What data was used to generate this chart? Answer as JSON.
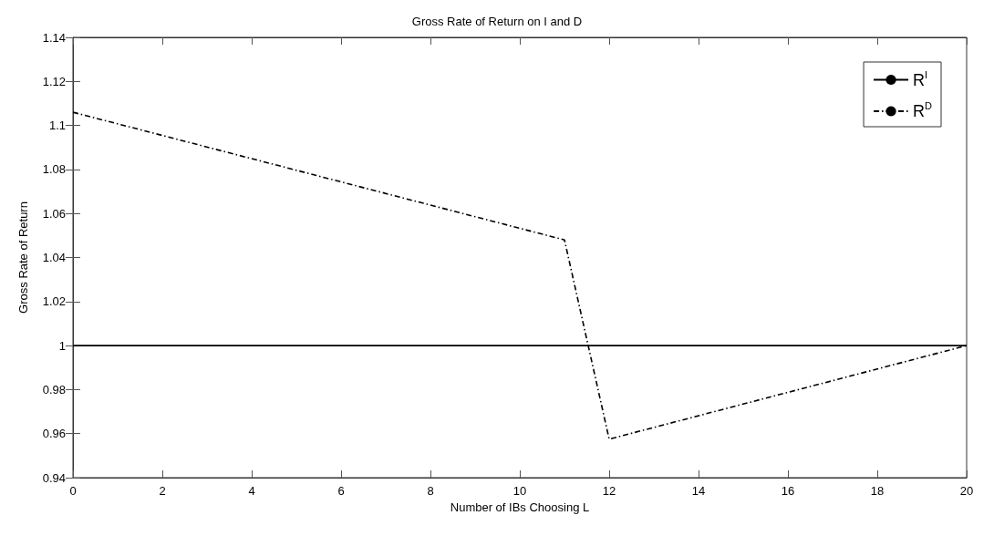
{
  "chart_data": {
    "type": "line",
    "title": "Gross Rate of Return on I and D",
    "xlabel": "Number of IBs Choosing L",
    "ylabel": "Gross Rate of Return",
    "xlim": [
      0,
      20
    ],
    "xticks": [
      0,
      2,
      4,
      6,
      8,
      10,
      12,
      14,
      16,
      18,
      20
    ],
    "ylim": [
      0.94,
      1.14
    ],
    "yticks": [
      0.94,
      0.96,
      0.98,
      1,
      1.02,
      1.04,
      1.06,
      1.08,
      1.1,
      1.12,
      1.14
    ],
    "grid": false,
    "legend": "top right",
    "marker": "none",
    "series": [
      {
        "name": "R$^{I}$",
        "color": "#000000",
        "line_style": "solid",
        "x": [
          0,
          20
        ],
        "values": [
          1,
          1
        ]
      },
      {
        "name": "R$^{D}$",
        "color": "#000000",
        "line_style": "dashdot",
        "x": [
          0,
          11,
          12,
          20
        ],
        "values": [
          1.106,
          1.048,
          0.9575,
          1
        ]
      }
    ]
  }
}
